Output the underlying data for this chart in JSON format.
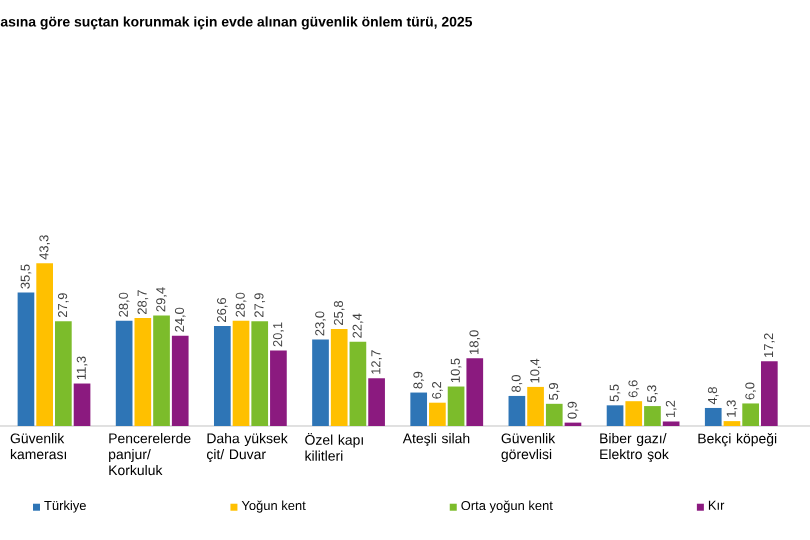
{
  "chart_data": {
    "type": "bar",
    "title": "asına göre suçtan korunmak için evde alınan güvenlik önlem türü, 2025",
    "categories": [
      "Güvenlik kamerası",
      "Pencerelerde panjur/ Korkuluk",
      "Daha yüksek çit/ Duvar",
      "Özel kapı kilitleri",
      "Ateşli silah",
      "Güvenlik görevlisi",
      "Biber gazı/ Elektro şok",
      "Bekçi köpeği"
    ],
    "series": [
      {
        "name": "Türkiye",
        "color": "#2e75b6",
        "values": [
          35.5,
          28.0,
          26.6,
          23.0,
          8.9,
          8.0,
          5.5,
          4.8
        ],
        "value_labels": [
          "35,5",
          "28,0",
          "26,6",
          "23,0",
          "8,9",
          "8,0",
          "5,5",
          "4,8"
        ]
      },
      {
        "name": "Yoğun kent",
        "color": "#ffc000",
        "values": [
          43.3,
          28.7,
          28.0,
          25.8,
          6.2,
          10.4,
          6.6,
          1.3
        ],
        "value_labels": [
          "43,3",
          "28,7",
          "28,0",
          "25,8",
          "6,2",
          "10,4",
          "6,6",
          "1,3"
        ]
      },
      {
        "name": "Orta yoğun kent",
        "color": "#7cbc2b",
        "values": [
          27.9,
          29.4,
          27.9,
          22.4,
          10.5,
          5.9,
          5.3,
          6.0
        ],
        "value_labels": [
          "27,9",
          "29,4",
          "27,9",
          "22,4",
          "10,5",
          "5,9",
          "5,3",
          "6,0"
        ]
      },
      {
        "name": "Kır",
        "color": "#8b1a7f",
        "values": [
          11.3,
          24.0,
          20.1,
          12.7,
          18.0,
          0.9,
          1.2,
          17.2
        ],
        "value_labels": [
          "11,3",
          "24,0",
          "20,1",
          "12,7",
          "18,0",
          "0,9",
          "1,2",
          "17,2"
        ]
      }
    ],
    "legend": "bottom"
  }
}
